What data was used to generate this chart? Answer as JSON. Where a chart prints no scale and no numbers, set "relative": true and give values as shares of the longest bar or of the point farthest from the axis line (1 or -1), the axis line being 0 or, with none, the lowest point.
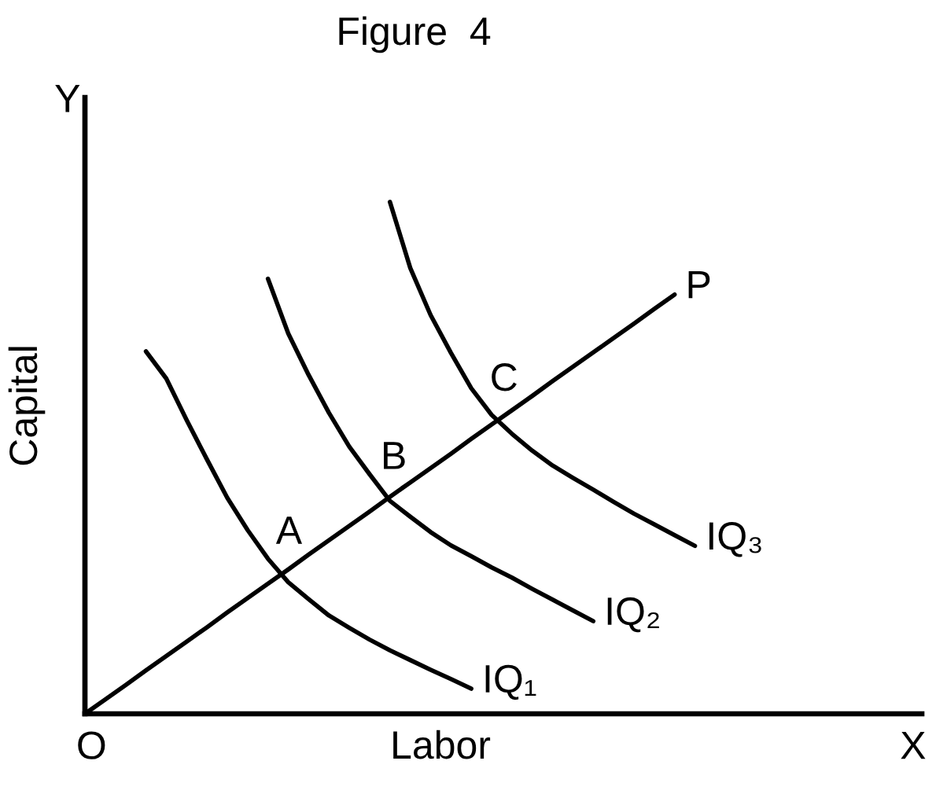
{
  "chart_data": {
    "type": "line",
    "title": "Figure  4",
    "xlabel": "Labor",
    "ylabel": "Capital",
    "relative": true,
    "categories": [
      null,
      null,
      null,
      null,
      null,
      null,
      null,
      null,
      null,
      null,
      null,
      null,
      null,
      null,
      null,
      null,
      null,
      null,
      null,
      null,
      null,
      null,
      null,
      null,
      null,
      null,
      null,
      null,
      null,
      null,
      null
    ],
    "series": [
      {
        "name": "IQ₁",
        "color": "#000000",
        "values": [
          null,
          null,
          null,
          0.708,
          0.655,
          0.574,
          0.497,
          0.422,
          0.359,
          0.303,
          0.257,
          0.224,
          0.192,
          0.168,
          0.145,
          0.124,
          0.105,
          0.086,
          0.068,
          0.049,
          null,
          null,
          null,
          null,
          null,
          null,
          null,
          null,
          null,
          null,
          null
        ]
      },
      {
        "name": "IQ₂",
        "color": "#000000",
        "values": [
          null,
          null,
          null,
          null,
          null,
          null,
          null,
          null,
          null,
          0.85,
          0.743,
          0.662,
          0.588,
          0.522,
          0.468,
          0.416,
          0.385,
          0.355,
          0.329,
          0.308,
          0.286,
          0.266,
          0.244,
          0.223,
          0.202,
          0.181,
          null,
          null,
          null,
          null,
          null
        ]
      },
      {
        "name": "IQ₃",
        "color": "#000000",
        "values": [
          null,
          null,
          null,
          null,
          null,
          null,
          null,
          null,
          null,
          null,
          null,
          null,
          null,
          null,
          null,
          1.0,
          0.871,
          0.779,
          0.705,
          0.636,
          0.584,
          0.547,
          0.514,
          0.485,
          0.461,
          0.438,
          0.414,
          0.391,
          0.37,
          0.349,
          0.328
        ]
      },
      {
        "name": "P",
        "color": "#000000",
        "values": [
          0,
          0.028,
          0.056,
          0.085,
          0.113,
          0.141,
          0.169,
          0.198,
          0.226,
          0.254,
          0.282,
          0.311,
          0.339,
          0.367,
          0.395,
          0.424,
          0.452,
          0.48,
          0.508,
          0.537,
          0.565,
          0.593,
          0.621,
          0.65,
          0.678,
          0.706,
          0.734,
          0.762,
          0.791,
          0.819,
          null
        ]
      }
    ],
    "annotations": [
      {
        "text": "A",
        "y": 0.271
      },
      {
        "text": "B",
        "y": 0.417
      },
      {
        "text": "C",
        "y": 0.57
      },
      "O",
      "X",
      "Y"
    ]
  }
}
